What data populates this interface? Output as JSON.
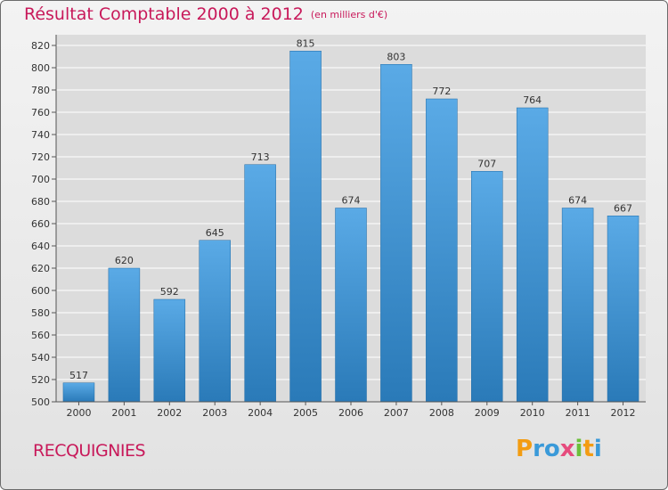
{
  "title": {
    "main": "Résultat Comptable 2000 à 2012",
    "unit": "(en milliers d'€)"
  },
  "commune": "RECQUIGNIES",
  "logo": {
    "text": "Proxiti",
    "letters": [
      "P",
      "r",
      "o",
      "x",
      "i",
      "t",
      "i"
    ],
    "colors": [
      "#f39c12",
      "#3a9ad9",
      "#3a9ad9",
      "#e64b7d",
      "#6cbf3a",
      "#f39c12",
      "#3a9ad9"
    ]
  },
  "colors": {
    "title": "#c8195a",
    "bar_top": "#5aaae6",
    "bar_bottom": "#2a7ab8",
    "grid": "#ffffff"
  },
  "chart_data": {
    "type": "bar",
    "title": "Résultat Comptable 2000 à 2012",
    "xlabel": "",
    "ylabel": "",
    "categories": [
      "2000",
      "2001",
      "2002",
      "2003",
      "2004",
      "2005",
      "2006",
      "2007",
      "2008",
      "2009",
      "2010",
      "2011",
      "2012"
    ],
    "values": [
      517,
      620,
      592,
      645,
      713,
      815,
      674,
      803,
      772,
      707,
      764,
      674,
      667
    ],
    "ylim": [
      500,
      820
    ],
    "yticks": [
      500,
      520,
      540,
      560,
      580,
      600,
      620,
      640,
      660,
      680,
      700,
      720,
      740,
      760,
      780,
      800,
      820
    ],
    "grid": true
  }
}
